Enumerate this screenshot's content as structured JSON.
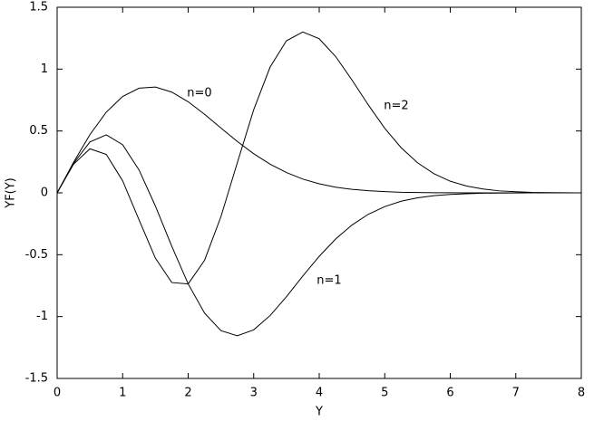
{
  "chart_data": {
    "type": "line",
    "x_label": "Y",
    "y_label": "YF(Y)",
    "x": [
      0,
      0.25,
      0.5,
      0.75,
      1,
      1.25,
      1.5,
      1.75,
      2,
      2.25,
      2.5,
      2.75,
      3,
      3.25,
      3.5,
      3.75,
      4,
      4.25,
      4.5,
      4.75,
      5,
      5.25,
      5.5,
      5.75,
      6,
      6.25,
      6.5,
      6.75,
      7,
      7.25,
      7.5,
      7.75,
      8
    ],
    "series": [
      {
        "name": "n=0",
        "color": "#000000",
        "values": [
          0,
          0.246,
          0.47,
          0.652,
          0.779,
          0.846,
          0.855,
          0.814,
          0.736,
          0.635,
          0.524,
          0.415,
          0.316,
          0.232,
          0.164,
          0.111,
          0.073,
          0.046,
          0.028,
          0.017,
          0.01,
          0.005,
          0.003,
          0.001,
          0.001,
          0,
          0,
          0,
          0,
          0,
          0,
          0,
          0
        ]
      },
      {
        "name": "n=1",
        "color": "#000000",
        "values": [
          0,
          0.238,
          0.411,
          0.469,
          0.389,
          0.185,
          -0.107,
          -0.432,
          -0.736,
          -0.972,
          -1.114,
          -1.155,
          -1.107,
          -0.992,
          -0.839,
          -0.672,
          -0.513,
          -0.373,
          -0.26,
          -0.173,
          -0.111,
          -0.068,
          -0.04,
          -0.023,
          -0.013,
          -0.007,
          -0.003,
          -0.002,
          -0.001,
          0,
          0,
          0,
          0
        ]
      },
      {
        "name": "n=2",
        "color": "#000000",
        "values": [
          0,
          0.231,
          0.356,
          0.311,
          0.097,
          -0.218,
          -0.528,
          -0.725,
          -0.736,
          -0.545,
          -0.192,
          0.243,
          0.672,
          1.016,
          1.229,
          1.3,
          1.245,
          1.102,
          0.912,
          0.71,
          0.522,
          0.365,
          0.243,
          0.155,
          0.094,
          0.055,
          0.031,
          0.016,
          0.009,
          0.004,
          0.002,
          0.001,
          0
        ]
      }
    ],
    "xlim": [
      0,
      8
    ],
    "xticks": [
      0,
      1,
      2,
      3,
      4,
      5,
      6,
      7,
      8
    ],
    "ylim": [
      -1.5,
      1.5
    ],
    "yticks": [
      -1.5,
      -1,
      -0.5,
      0,
      0.5,
      1,
      1.5
    ],
    "grid": false
  }
}
